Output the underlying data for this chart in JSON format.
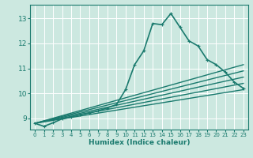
{
  "xlabel": "Humidex (Indice chaleur)",
  "xlim": [
    -0.5,
    23.5
  ],
  "ylim": [
    8.55,
    13.55
  ],
  "xticks": [
    0,
    1,
    2,
    3,
    4,
    5,
    6,
    7,
    8,
    9,
    10,
    11,
    12,
    13,
    14,
    15,
    16,
    17,
    18,
    19,
    20,
    21,
    22,
    23
  ],
  "yticks": [
    9,
    10,
    11,
    12,
    13
  ],
  "bg_color": "#cce8e0",
  "line_color": "#1a7a6e",
  "grid_color": "#ffffff",
  "lines": [
    {
      "x": [
        0,
        1,
        2,
        3,
        4,
        5,
        6,
        7,
        8,
        9,
        10,
        11,
        12,
        13,
        14,
        15,
        16,
        17,
        18,
        19,
        20,
        21,
        22,
        23
      ],
      "y": [
        8.8,
        8.68,
        8.82,
        8.98,
        9.05,
        9.15,
        9.22,
        9.3,
        9.42,
        9.55,
        10.15,
        11.15,
        11.7,
        12.8,
        12.75,
        13.2,
        12.65,
        12.1,
        11.9,
        11.35,
        11.15,
        10.85,
        10.45,
        10.2
      ],
      "marker": true,
      "lw": 1.2
    },
    {
      "x": [
        0,
        23
      ],
      "y": [
        8.8,
        11.15
      ],
      "marker": false,
      "lw": 1.0
    },
    {
      "x": [
        0,
        23
      ],
      "y": [
        8.8,
        10.9
      ],
      "marker": false,
      "lw": 1.0
    },
    {
      "x": [
        0,
        23
      ],
      "y": [
        8.8,
        10.65
      ],
      "marker": false,
      "lw": 1.0
    },
    {
      "x": [
        0,
        23
      ],
      "y": [
        8.8,
        10.4
      ],
      "marker": false,
      "lw": 1.0
    },
    {
      "x": [
        0,
        23
      ],
      "y": [
        8.8,
        10.15
      ],
      "marker": false,
      "lw": 1.0
    }
  ]
}
